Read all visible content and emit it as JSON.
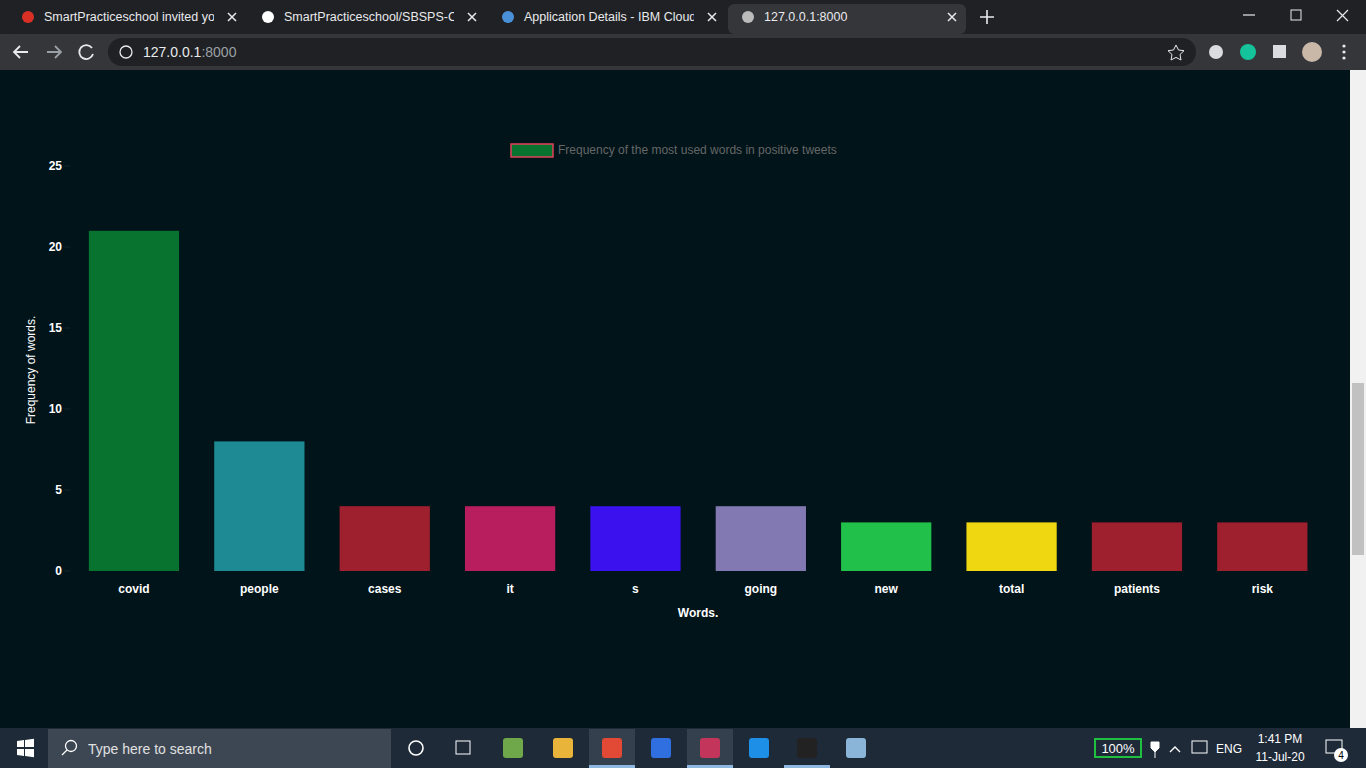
{
  "browser": {
    "tabs": [
      "SmartPracticeschool invited you t",
      "SmartPracticeschool/SBSPS-Chal",
      "Application Details - IBM Cloud",
      "127.0.0.1:8000"
    ],
    "url": {
      "host": "127.0.0.1",
      "port": ":8000"
    }
  },
  "chart_data": {
    "type": "bar",
    "categories": [
      "covid",
      "people",
      "cases",
      "it",
      "s",
      "going",
      "new",
      "total",
      "patients",
      "risk"
    ],
    "series": [
      {
        "name": "Frequency of the most used words in positive tweets",
        "values": [
          21,
          8,
          4,
          4,
          4,
          4,
          3,
          3,
          3,
          3
        ],
        "colors": [
          "#08732f",
          "#1e8a94",
          "#9e1f2e",
          "#b81e5d",
          "#3b12ee",
          "#8279b2",
          "#21c04a",
          "#efd711",
          "#9e1f2e",
          "#9e1f2e"
        ]
      }
    ],
    "x_label": "Words.",
    "y_label": "Frequency of words.",
    "ylim": [
      0,
      25
    ],
    "yticks": [
      0,
      5,
      10,
      15,
      20,
      25
    ],
    "grid": false,
    "legend": "top"
  },
  "taskbar": {
    "search": "Type here to search",
    "battery": "100%",
    "language": "ENG",
    "time": "1:41 PM",
    "date": "11-Jul-20",
    "notifications": 4
  }
}
